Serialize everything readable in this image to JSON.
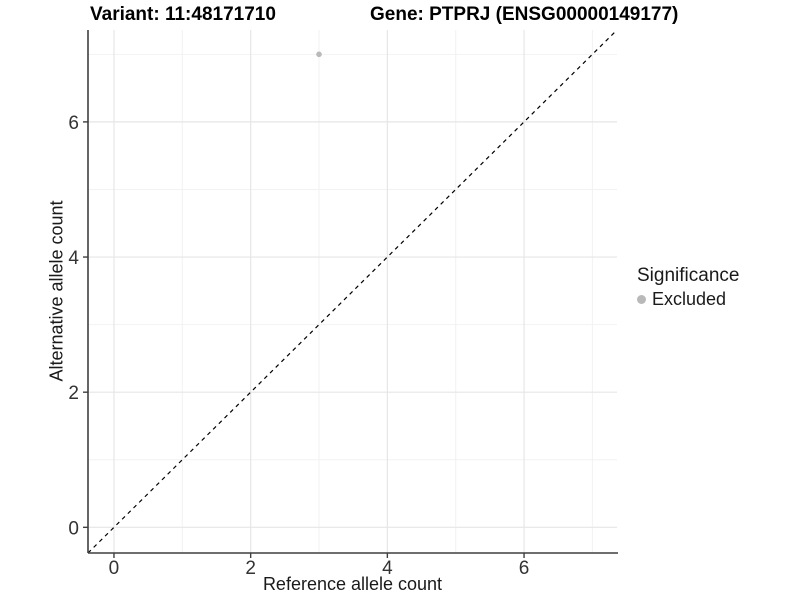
{
  "chart_data": {
    "type": "scatter",
    "title_variant": "Variant: 11:48171710",
    "title_gene": "Gene: PTPRJ (ENSG00000149177)",
    "xlabel": "Reference allele count",
    "ylabel": "Alternative allele count",
    "xlim": [
      -0.38,
      7.36
    ],
    "ylim": [
      -0.38,
      7.36
    ],
    "x_major_ticks": [
      0,
      2,
      4,
      6
    ],
    "y_major_ticks": [
      0,
      2,
      4,
      6
    ],
    "x_minor_gridlines": [
      1,
      3,
      5,
      7
    ],
    "y_minor_gridlines": [
      1,
      3,
      5,
      7
    ],
    "grid": true,
    "legend_position": "right",
    "points": [
      {
        "x": 3,
        "y": 7,
        "significance": "Excluded"
      }
    ],
    "reference_line": {
      "type": "identity",
      "slope": 1,
      "intercept": 0,
      "style": "dashed",
      "color": "#000000"
    },
    "legend": {
      "title": "Significance",
      "items": [
        {
          "label": "Excluded",
          "color": "#b9b9b9"
        }
      ]
    },
    "colors": {
      "grid_major": "#e6e6e6",
      "grid_minor": "#f2f2f2",
      "axis_line": "#3f3f3f",
      "tick_label": "#333333",
      "point_excluded": "#b9b9b9",
      "background": "#ffffff"
    }
  }
}
